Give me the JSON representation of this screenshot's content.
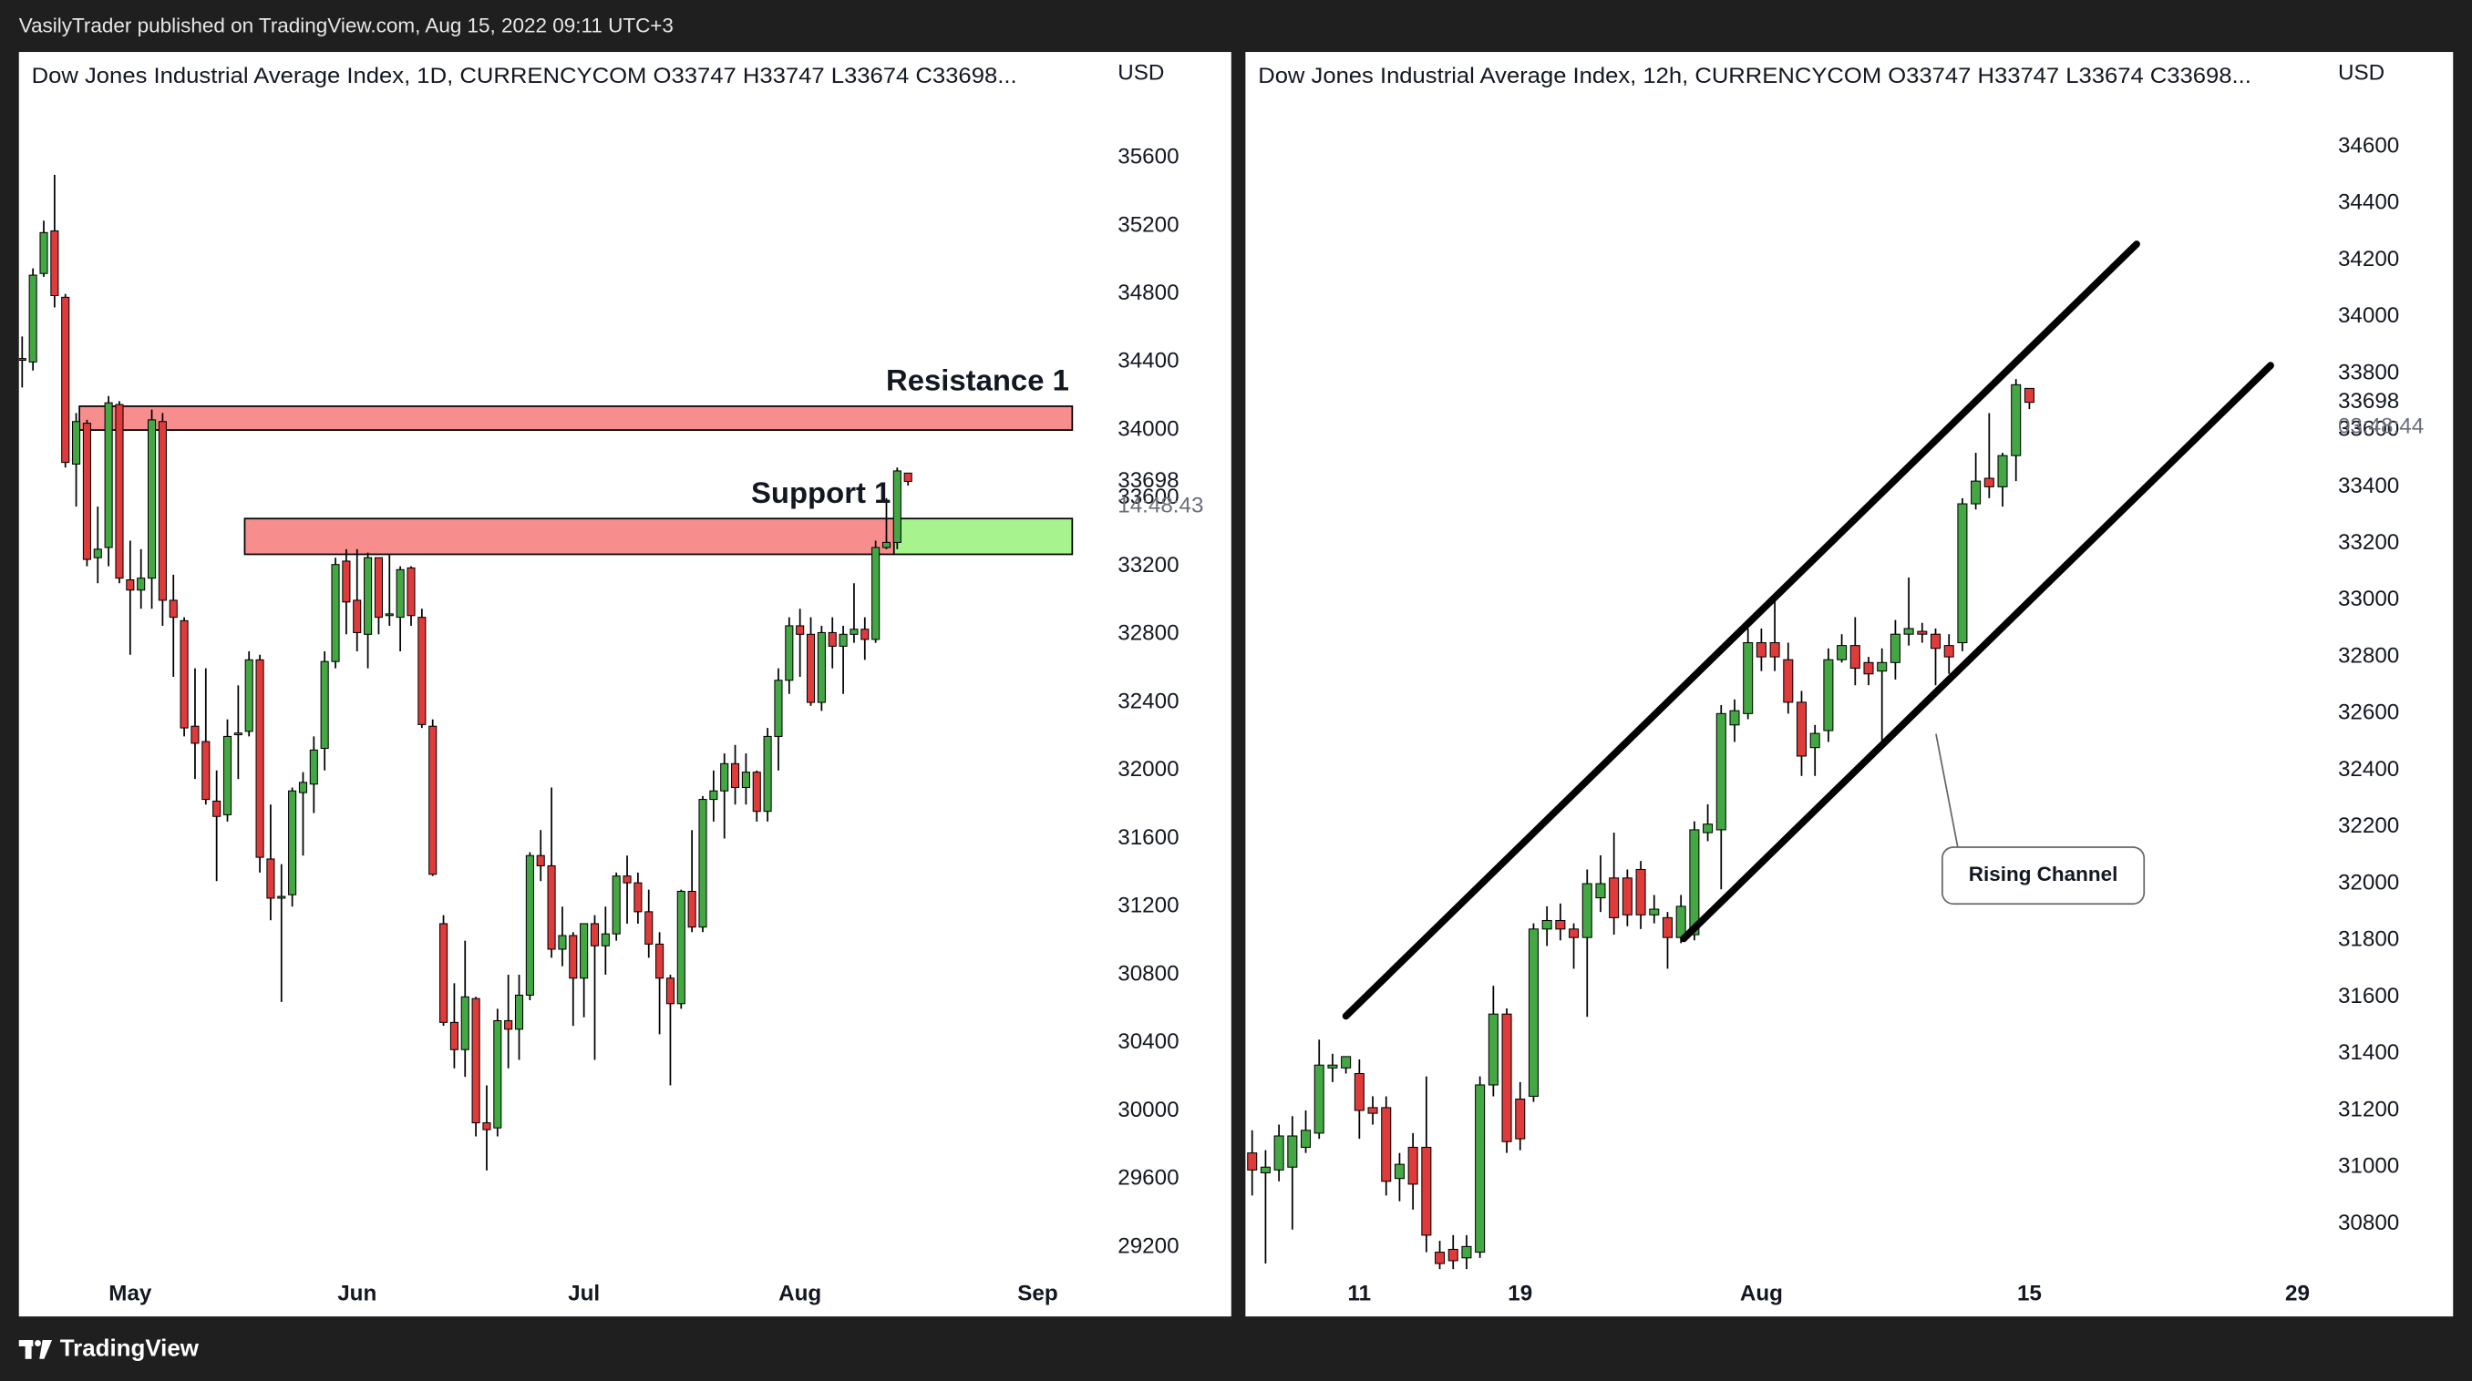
{
  "header": {
    "text": "VasilyTrader published on TradingView.com, Aug 15, 2022 09:11 UTC+3"
  },
  "footer": {
    "brand": "TradingView"
  },
  "chart_data": [
    {
      "type": "candlestick",
      "title": "Dow Jones Industrial Average Index, 1D, CURRENCYCOM  O33747  H33747  L33674  C33698...",
      "currency": "USD",
      "up_color": "#43a843",
      "down_color": "#e03b3b",
      "x": [
        0,
        1,
        2,
        3,
        4,
        5,
        6,
        7,
        8,
        9,
        10,
        11,
        12,
        13,
        14,
        15,
        16,
        17,
        18,
        19,
        20,
        21,
        22,
        23,
        24,
        25,
        26,
        27,
        28,
        29,
        30,
        31,
        32,
        33,
        34,
        35,
        36,
        37,
        38,
        39,
        40,
        41,
        42,
        43,
        44,
        45,
        46,
        47,
        48,
        49,
        50,
        51,
        52,
        53,
        54,
        55,
        56,
        57,
        58,
        59,
        60,
        61,
        62,
        63,
        64,
        65,
        66,
        67,
        68,
        69,
        70,
        71,
        72,
        73,
        74,
        75,
        76,
        77,
        78,
        79,
        80,
        81,
        82
      ],
      "open": [
        34420,
        34400,
        34920,
        35170,
        34780,
        33800,
        34040,
        33250,
        33310,
        34150,
        33120,
        33060,
        33130,
        34050,
        33000,
        32880,
        32260,
        32170,
        31820,
        31740,
        32210,
        32230,
        32650,
        31480,
        31250,
        31270,
        31870,
        31920,
        32130,
        32640,
        33230,
        33000,
        32800,
        33250,
        32910,
        32900,
        33190,
        32900,
        32260,
        31100,
        30520,
        30360,
        30660,
        29930,
        29900,
        30530,
        30480,
        30680,
        31500,
        31440,
        30950,
        31030,
        30780,
        31100,
        30970,
        31040,
        31380,
        31340,
        31170,
        30980,
        30780,
        30630,
        31290,
        31080,
        31830,
        31880,
        32040,
        31900,
        31990,
        31760,
        32200,
        32530,
        32850,
        32800,
        32400,
        32810,
        32730,
        32800,
        32830,
        32770,
        33310,
        33340,
        33747
      ],
      "high": [
        34550,
        34950,
        35230,
        35500,
        34800,
        34100,
        34060,
        33550,
        34200,
        34170,
        33350,
        33300,
        34120,
        34100,
        33150,
        32900,
        32600,
        32600,
        32000,
        32300,
        32500,
        32700,
        32680,
        31800,
        31450,
        31900,
        31990,
        32200,
        32700,
        33250,
        33300,
        33300,
        33280,
        33250,
        33270,
        33200,
        33200,
        32950,
        32300,
        31150,
        30750,
        31000,
        30670,
        30150,
        30600,
        30800,
        30800,
        31520,
        31650,
        31900,
        31200,
        31050,
        31100,
        31150,
        31200,
        31400,
        31500,
        31400,
        31300,
        31050,
        30800,
        31300,
        31650,
        31850,
        32000,
        32100,
        32150,
        32100,
        32000,
        32250,
        32600,
        32900,
        32950,
        32900,
        32850,
        32900,
        32850,
        33100,
        32900,
        33350,
        33600,
        33780,
        33747
      ],
      "low": [
        34250,
        34350,
        34900,
        34720,
        33780,
        33550,
        33200,
        33100,
        33200,
        33100,
        32680,
        32950,
        32950,
        32850,
        32550,
        32200,
        31950,
        31800,
        31350,
        31700,
        31950,
        32200,
        31400,
        31120,
        30640,
        31200,
        31500,
        31750,
        32000,
        32600,
        32800,
        32700,
        32600,
        32800,
        32850,
        32700,
        32850,
        32250,
        31380,
        30500,
        30250,
        30200,
        29850,
        29650,
        29850,
        30250,
        30300,
        30650,
        31350,
        30900,
        30850,
        30500,
        30550,
        30300,
        30800,
        31000,
        31100,
        31100,
        30900,
        30450,
        30150,
        30600,
        31050,
        31050,
        31700,
        31600,
        31800,
        31800,
        31700,
        31700,
        32000,
        32450,
        32550,
        32380,
        32350,
        32600,
        32450,
        32750,
        32650,
        32750,
        33300,
        33300,
        33674
      ],
      "close": [
        34410,
        34910,
        35160,
        34790,
        33810,
        34050,
        33240,
        33300,
        34160,
        33130,
        33060,
        33130,
        34060,
        33000,
        32900,
        32250,
        32160,
        31830,
        31730,
        32200,
        32220,
        32650,
        31490,
        31250,
        31260,
        31880,
        31930,
        32120,
        32640,
        33210,
        32990,
        32810,
        33250,
        32900,
        32920,
        33180,
        32910,
        32270,
        31390,
        30520,
        30360,
        30670,
        29930,
        29890,
        30530,
        30480,
        30680,
        31500,
        31440,
        30950,
        31030,
        30780,
        31100,
        30970,
        31040,
        31380,
        31340,
        31170,
        30980,
        30780,
        30630,
        31290,
        31080,
        31830,
        31880,
        32040,
        31900,
        31990,
        31760,
        32200,
        32530,
        32850,
        32800,
        32400,
        32810,
        32730,
        32800,
        32830,
        32770,
        33310,
        33340,
        33760,
        33698
      ],
      "xlim": [
        -0.3,
        100.1
      ],
      "xticks": [
        {
          "value": 10,
          "label": "May"
        },
        {
          "value": 31,
          "label": "Jun"
        },
        {
          "value": 52,
          "label": "Jul"
        },
        {
          "value": 72,
          "label": "Aug"
        },
        {
          "value": 94,
          "label": "Sep"
        }
      ],
      "ylim": [
        29070,
        35990
      ],
      "yticks": [
        29200,
        29600,
        30000,
        30400,
        30800,
        31200,
        31600,
        32000,
        32400,
        32800,
        33200,
        33600,
        34000,
        34400,
        34800,
        35200,
        35600
      ],
      "last_price": {
        "value": 33698,
        "countdown": "14:48:43"
      },
      "zones": [
        {
          "label": "Resistance 1",
          "range": [
            34000,
            34140
          ],
          "x": [
            5.3,
            97.2
          ],
          "color": "#f88d8d"
        },
        {
          "label": "Support 1",
          "range": [
            33270,
            33480
          ],
          "x": [
            20.6,
            80.7
          ],
          "color": "#f88d8d"
        },
        {
          "range": [
            33270,
            33480
          ],
          "x": [
            80.7,
            97.2
          ],
          "color": "#a7f38e"
        }
      ]
    },
    {
      "type": "candlestick",
      "title": "Dow Jones Industrial Average Index, 12h, CURRENCYCOM  O33747  H33747  L33674  C33698...",
      "currency": "USD",
      "up_color": "#43a843",
      "down_color": "#e03b3b",
      "x": [
        0,
        1,
        2,
        3,
        4,
        5,
        6,
        7,
        8,
        9,
        10,
        11,
        12,
        13,
        14,
        15,
        16,
        17,
        18,
        19,
        20,
        21,
        22,
        23,
        24,
        25,
        26,
        27,
        28,
        29,
        30,
        31,
        32,
        33,
        34,
        35,
        36,
        37,
        38,
        39,
        40,
        41,
        42,
        43,
        44,
        45,
        46,
        47,
        48,
        49,
        50,
        51,
        52,
        53,
        54,
        55,
        56,
        57,
        58
      ],
      "open": [
        31050,
        30980,
        30990,
        31000,
        31070,
        31120,
        31350,
        31350,
        31330,
        31210,
        31210,
        30960,
        31070,
        31070,
        30700,
        30710,
        30680,
        30700,
        31290,
        31540,
        31240,
        31250,
        31840,
        31870,
        31840,
        31810,
        31950,
        32020,
        32020,
        32050,
        31890,
        31880,
        31810,
        31820,
        32180,
        32190,
        32560,
        32600,
        32850,
        32850,
        32790,
        32640,
        32480,
        32540,
        32790,
        32840,
        32780,
        32750,
        32780,
        32880,
        32890,
        32880,
        32840,
        32850,
        33340,
        33430,
        33400,
        33510,
        33747
      ],
      "high": [
        31130,
        31060,
        31150,
        31180,
        31200,
        31450,
        31400,
        31390,
        31380,
        31250,
        31250,
        31050,
        31120,
        31320,
        30740,
        30760,
        30760,
        31320,
        31640,
        31560,
        31300,
        31860,
        31920,
        31930,
        31860,
        32050,
        32100,
        32180,
        32050,
        32080,
        31960,
        31900,
        31960,
        32220,
        32280,
        32630,
        32650,
        32900,
        32900,
        33010,
        32850,
        32680,
        32560,
        32830,
        32880,
        32940,
        32800,
        32830,
        32930,
        33080,
        32920,
        32900,
        32880,
        33360,
        33520,
        33660,
        33520,
        33780,
        33747
      ],
      "low": [
        30900,
        30660,
        30950,
        30780,
        31050,
        31100,
        31300,
        31330,
        31100,
        31150,
        30900,
        30880,
        30850,
        30700,
        30640,
        30640,
        30640,
        30680,
        31250,
        31050,
        31060,
        31230,
        31780,
        31800,
        31700,
        31530,
        31900,
        31820,
        31850,
        31840,
        31860,
        31700,
        31790,
        31800,
        32150,
        31980,
        32500,
        32580,
        32750,
        32750,
        32600,
        32380,
        32380,
        32500,
        32780,
        32700,
        32700,
        32490,
        32720,
        32840,
        32850,
        32700,
        32740,
        32820,
        33320,
        33360,
        33330,
        33420,
        33674
      ],
      "close": [
        30990,
        31000,
        31110,
        31110,
        31130,
        31360,
        31360,
        31390,
        31200,
        31190,
        30950,
        31010,
        30940,
        30760,
        30660,
        30670,
        30720,
        31290,
        31540,
        31090,
        31100,
        31840,
        31870,
        31840,
        31810,
        32000,
        32000,
        31880,
        31890,
        31890,
        31910,
        31810,
        31920,
        32190,
        32210,
        32600,
        32610,
        32850,
        32800,
        32800,
        32640,
        32450,
        32530,
        32790,
        32840,
        32760,
        32740,
        32780,
        32880,
        32900,
        32880,
        32830,
        32800,
        33340,
        33420,
        33400,
        33510,
        33760,
        33698
      ],
      "xlim": [
        -0.5,
        79.5
      ],
      "xticks": [
        {
          "value": 8,
          "label": "11"
        },
        {
          "value": 20,
          "label": "19"
        },
        {
          "value": 38,
          "label": "Aug"
        },
        {
          "value": 58,
          "label": "15"
        },
        {
          "value": 78,
          "label": "29"
        }
      ],
      "ylim": [
        30640,
        34795
      ],
      "yticks": [
        30800,
        31000,
        31200,
        31400,
        31600,
        31800,
        32000,
        32200,
        32400,
        32600,
        32800,
        33000,
        33200,
        33400,
        33600,
        33800,
        34000,
        34200,
        34400,
        34600
      ],
      "last_price": {
        "value": 33698,
        "countdown": "03:48:44"
      },
      "trendlines": [
        {
          "x": [
            7,
            66
          ],
          "y": [
            31533,
            34256
          ]
        },
        {
          "x": [
            32.2,
            76
          ],
          "y": [
            31806,
            33828
          ]
        }
      ],
      "annotations": [
        {
          "text": "Rising Channel"
        }
      ]
    }
  ]
}
